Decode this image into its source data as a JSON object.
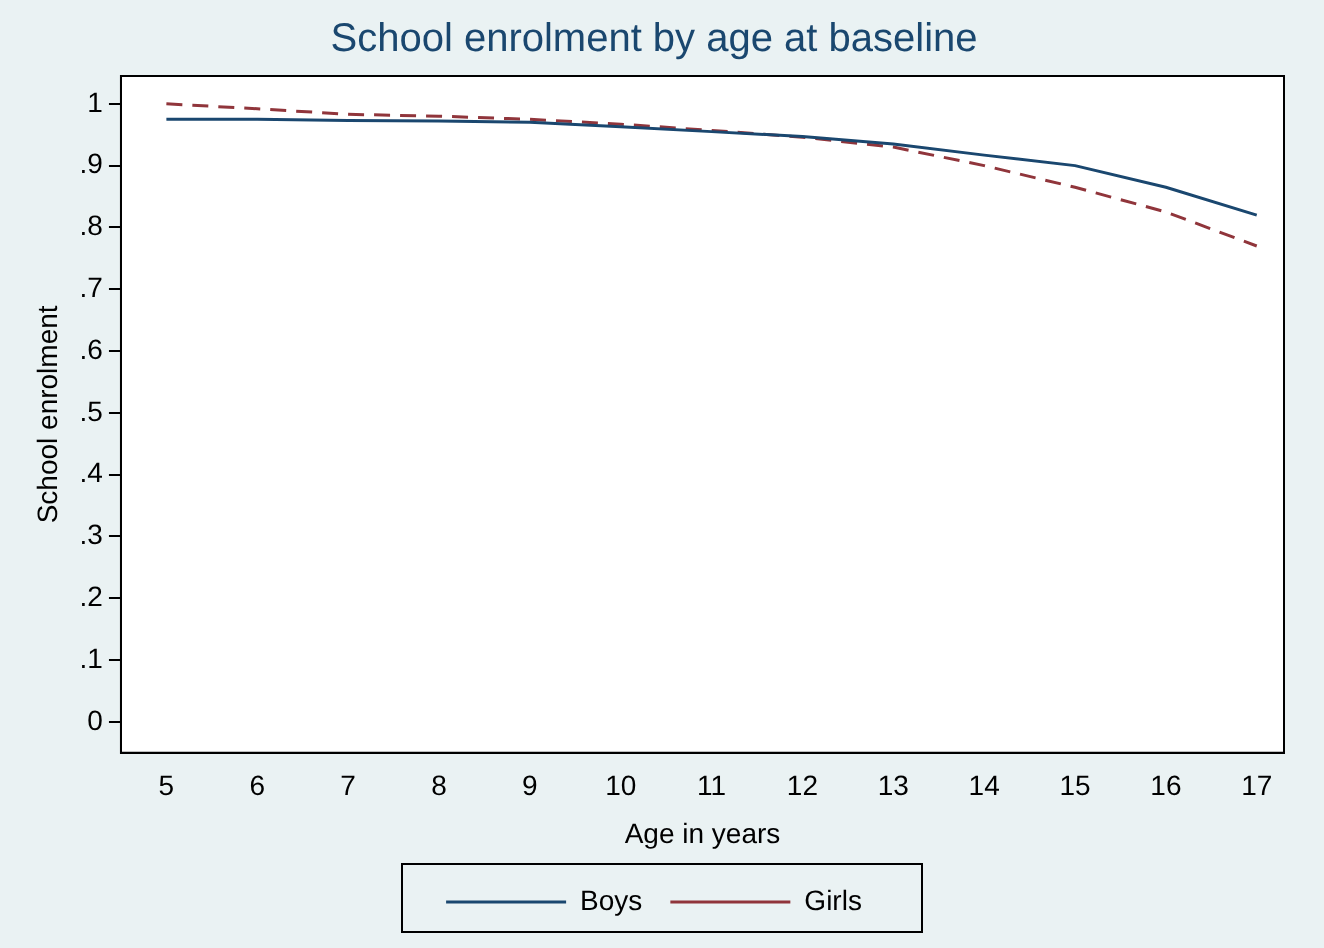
{
  "chart_data": {
    "type": "line",
    "title": "School enrolment by age at baseline",
    "xlabel": "Age in years",
    "ylabel": "School enrolment",
    "x": [
      5,
      6,
      7,
      8,
      9,
      10,
      11,
      12,
      13,
      14,
      15,
      16,
      17
    ],
    "series": [
      {
        "name": "Boys",
        "color": "#1a476f",
        "line_style": "solid",
        "values": [
          0.975,
          0.975,
          0.973,
          0.972,
          0.97,
          0.963,
          0.955,
          0.947,
          0.935,
          0.917,
          0.9,
          0.865,
          0.82
        ]
      },
      {
        "name": "Girls",
        "color": "#90353b",
        "line_style": "dashed",
        "values": [
          1.0,
          0.992,
          0.983,
          0.98,
          0.975,
          0.967,
          0.957,
          0.946,
          0.93,
          0.9,
          0.865,
          0.825,
          0.77
        ]
      }
    ],
    "xlim": [
      4.5,
      17.3
    ],
    "xticks": [
      5,
      6,
      7,
      8,
      9,
      10,
      11,
      12,
      13,
      14,
      15,
      16,
      17
    ],
    "ylim": [
      -0.05,
      1.045
    ],
    "yticks": [
      0,
      {
        "value": 0.1,
        "label": ".1"
      },
      {
        "value": 0.2,
        "label": ".2"
      },
      {
        "value": 0.3,
        "label": ".3"
      },
      {
        "value": 0.4,
        "label": ".4"
      },
      {
        "value": 0.5,
        "label": ".5"
      },
      {
        "value": 0.6,
        "label": ".6"
      },
      {
        "value": 0.7,
        "label": ".7"
      },
      {
        "value": 0.8,
        "label": ".8"
      },
      {
        "value": 0.9,
        "label": ".9"
      },
      1
    ],
    "grid": false,
    "legend": "bottom",
    "marker": "none"
  }
}
